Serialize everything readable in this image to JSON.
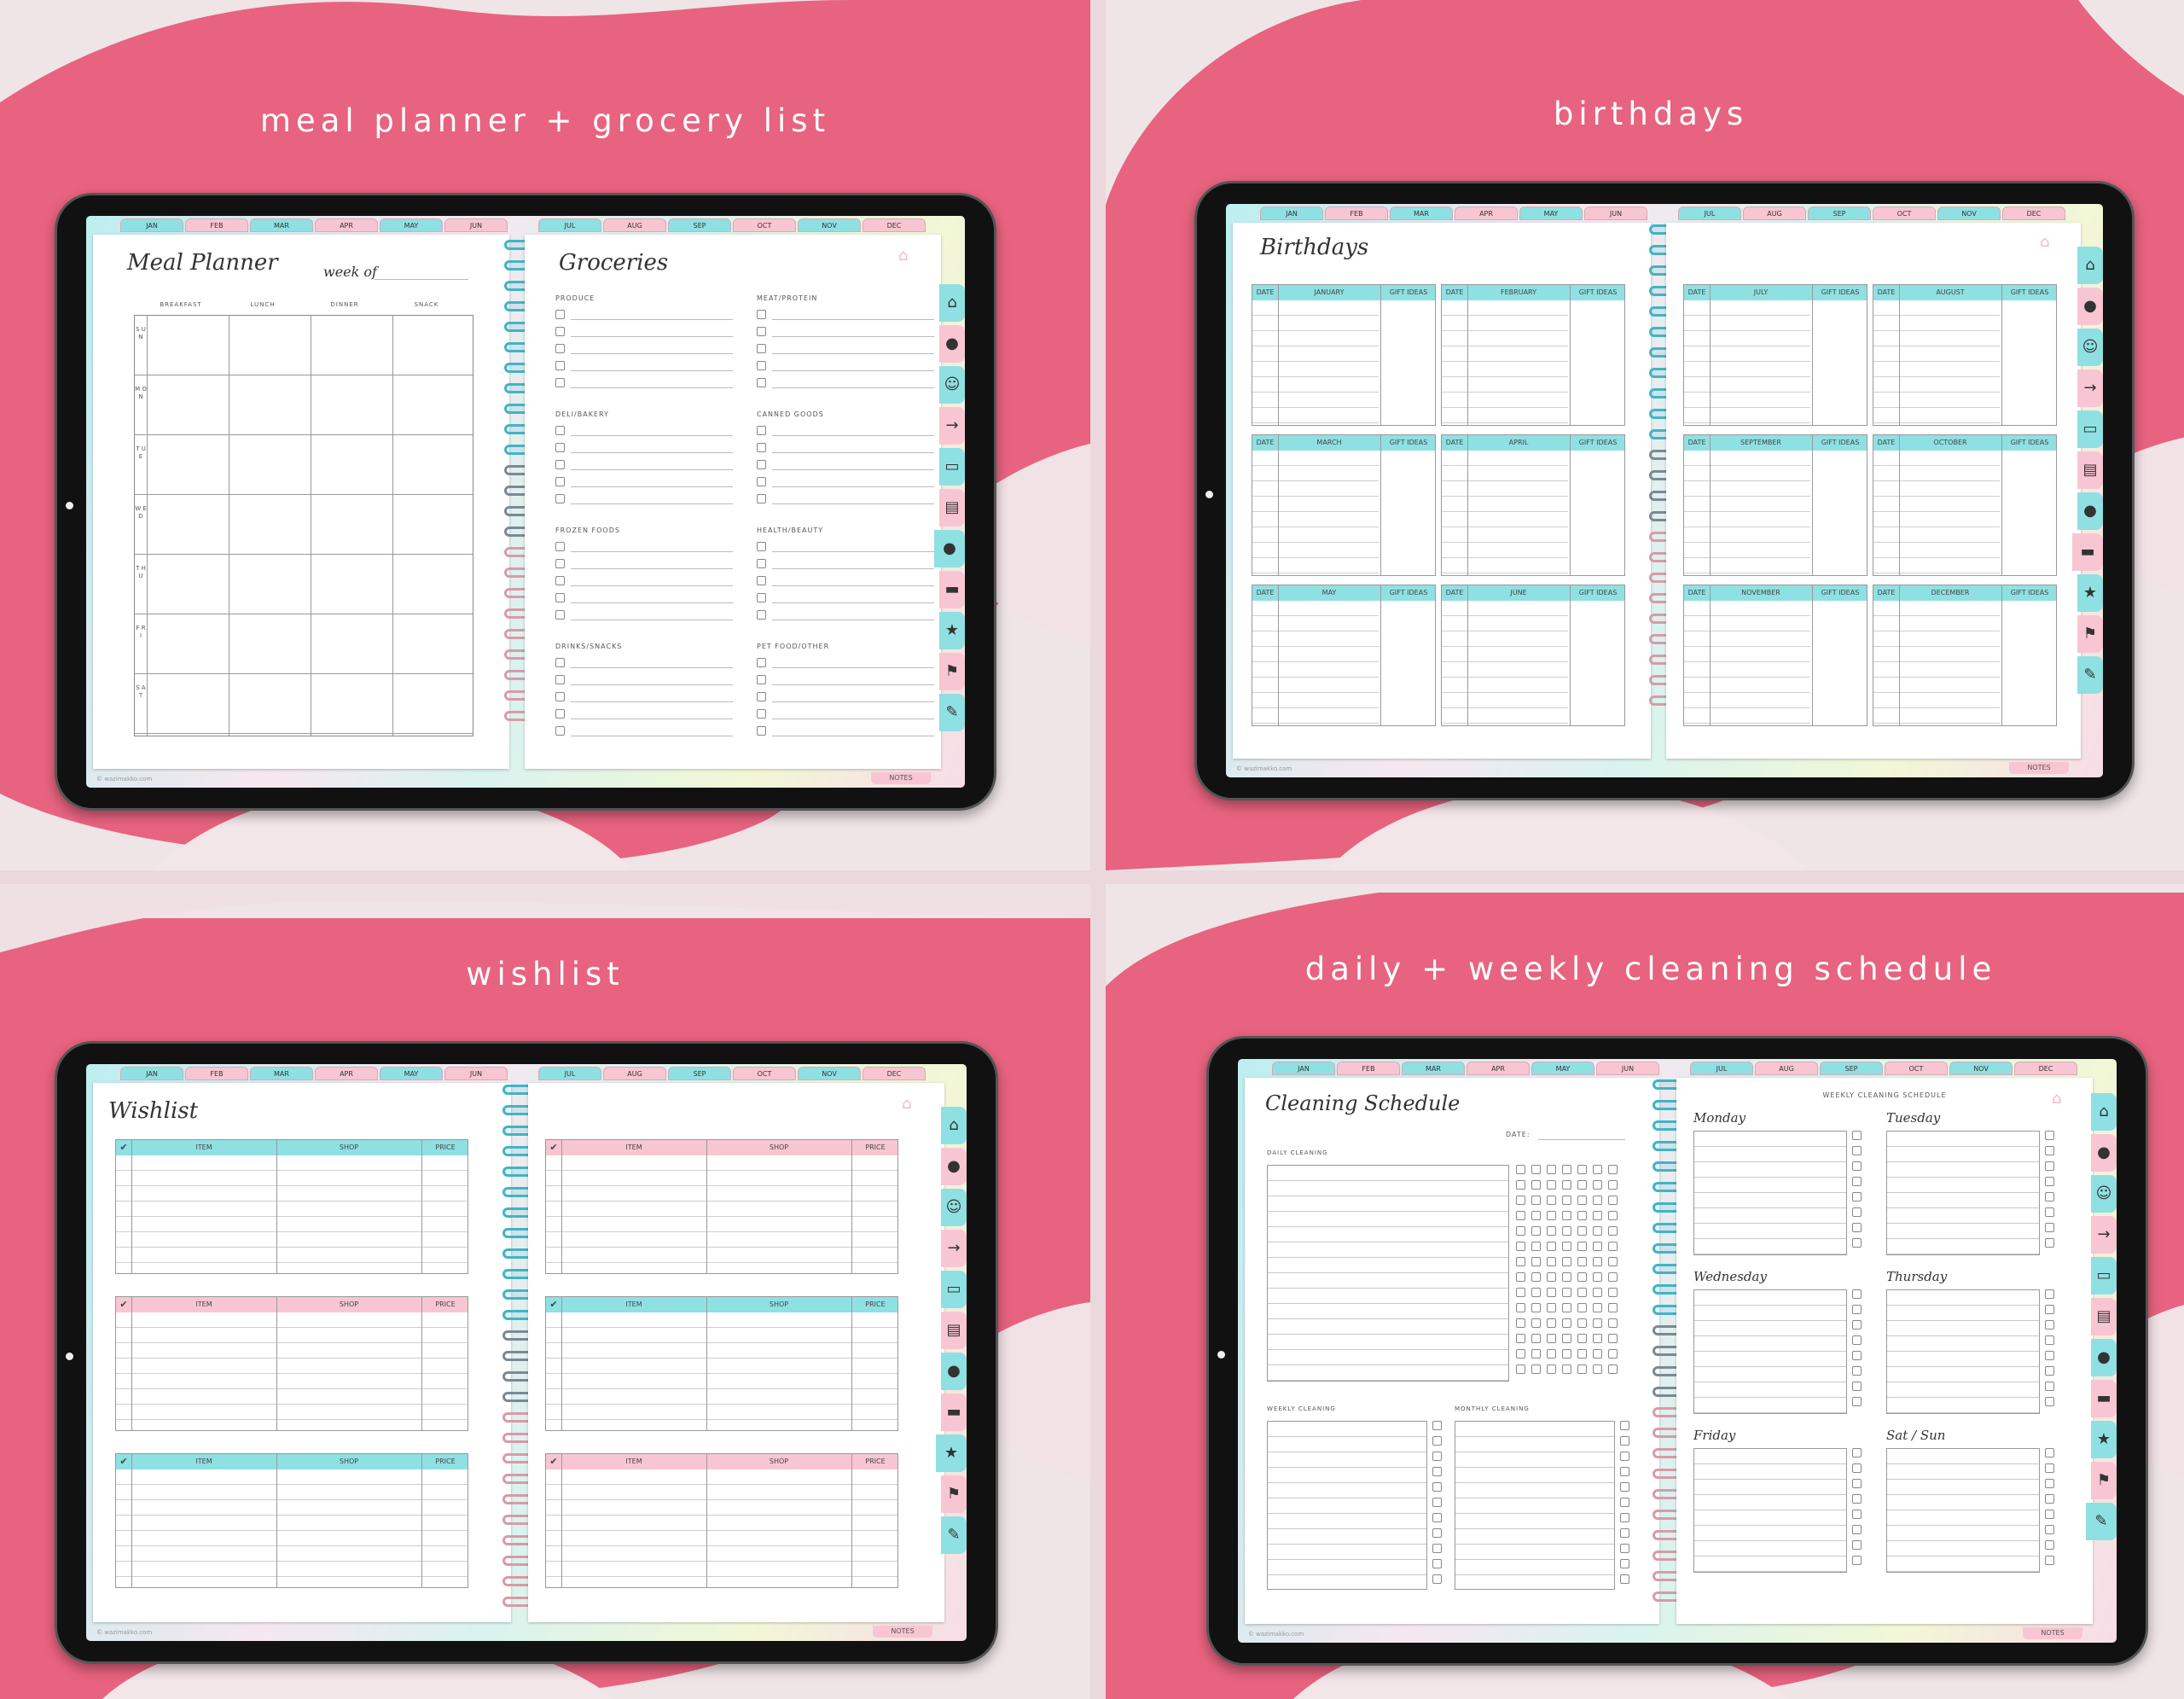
{
  "colors": {
    "pink": "#e8637f",
    "teal": "#8fe0e3",
    "rose": "#f8c6d2"
  },
  "months": [
    "JAN",
    "FEB",
    "MAR",
    "APR",
    "MAY",
    "JUN",
    "JUL",
    "AUG",
    "SEP",
    "OCT",
    "NOV",
    "DEC"
  ],
  "side_icons": [
    "home-icon",
    "piggy-bank-icon",
    "people-icon",
    "login-icon",
    "monitor-icon",
    "book-icon",
    "apple-icon",
    "bed-icon",
    "star-icon",
    "runner-icon",
    "cleaning-icon"
  ],
  "footer": {
    "copyright": "© wazimakko.com",
    "notes": "NOTES"
  },
  "panels": {
    "meal": {
      "caption": "meal planner + grocery list",
      "title": "Meal Planner",
      "week_of": "week of",
      "columns": [
        "BREAKFAST",
        "LUNCH",
        "DINNER",
        "SNACK"
      ],
      "days": [
        "S U N",
        "M O N",
        "T U E",
        "W E D",
        "T H U",
        "F R I",
        "S A T"
      ],
      "groceries_title": "Groceries",
      "categories": [
        "PRODUCE",
        "MEAT/PROTEIN",
        "DELI/BAKERY",
        "CANNED GOODS",
        "FROZEN FOODS",
        "HEALTH/BEAUTY",
        "DRINKS/SNACKS",
        "PET FOOD/OTHER"
      ]
    },
    "birthdays": {
      "caption": "birthdays",
      "title": "Birthdays",
      "date_label": "DATE",
      "gift_label": "GIFT IDEAS",
      "months": [
        "JANUARY",
        "FEBRUARY",
        "MARCH",
        "APRIL",
        "MAY",
        "JUNE",
        "JULY",
        "AUGUST",
        "SEPTEMBER",
        "OCTOBER",
        "NOVEMBER",
        "DECEMBER"
      ]
    },
    "wishlist": {
      "caption": "wishlist",
      "title": "Wishlist",
      "check": "✔",
      "item": "ITEM",
      "shop": "SHOP",
      "price": "PRICE"
    },
    "cleaning": {
      "caption": "daily + weekly cleaning schedule",
      "title": "Cleaning Schedule",
      "date_label": "DATE:",
      "daily": "DAILY CLEANING",
      "weekly": "WEEKLY CLEANING",
      "monthly": "MONTHLY CLEANING",
      "weekly_schedule": "WEEKLY CLEANING SCHEDULE",
      "days": [
        "Monday",
        "Tuesday",
        "Wednesday",
        "Thursday",
        "Friday",
        "Sat / Sun"
      ]
    }
  }
}
